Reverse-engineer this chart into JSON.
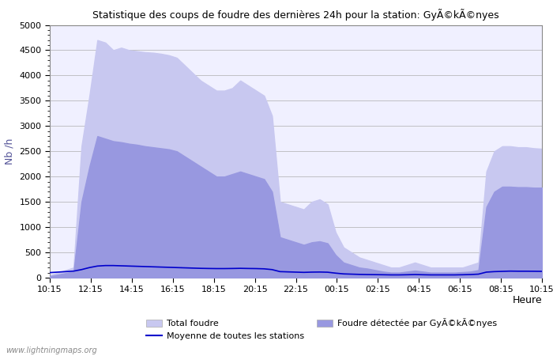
{
  "title": "Statistique des coups de foudre des dernières 24h pour la station: GyÃ©kÃ©nyes",
  "xlabel": "Heure",
  "ylabel": "Nb /h",
  "ylim": [
    0,
    5000
  ],
  "yticks": [
    0,
    500,
    1000,
    1500,
    2000,
    2500,
    3000,
    3500,
    4000,
    4500,
    5000
  ],
  "time_labels": [
    "10:15",
    "12:15",
    "14:15",
    "16:15",
    "18:15",
    "20:15",
    "22:15",
    "00:15",
    "02:15",
    "04:15",
    "06:15",
    "08:15",
    "10:15"
  ],
  "color_total": "#c8c8f0",
  "color_detected": "#9898e0",
  "color_mean": "#0000cc",
  "background": "#f0f0ff",
  "legend_total": "Total foudre",
  "legend_mean": "Moyenne de toutes les stations",
  "legend_detected": "Foudre détectée par GyÃ©kÃ©nyes",
  "watermark": "www.lightningmaps.org",
  "total_foudre": [
    50,
    100,
    150,
    200,
    2600,
    3600,
    4700,
    4650,
    4500,
    4550,
    4500,
    4480,
    4460,
    4450,
    4430,
    4400,
    4350,
    4200,
    4050,
    3900,
    3800,
    3700,
    3700,
    3750,
    3900,
    3800,
    3700,
    3600,
    3200,
    1500,
    1450,
    1400,
    1350,
    1500,
    1550,
    1450,
    900,
    600,
    500,
    400,
    350,
    300,
    250,
    200,
    200,
    250,
    300,
    250,
    200,
    200,
    200,
    200,
    200,
    250,
    300,
    2100,
    2500,
    2600,
    2600,
    2580,
    2580,
    2560,
    2550
  ],
  "detected_foudre": [
    30,
    60,
    90,
    120,
    1500,
    2200,
    2800,
    2750,
    2700,
    2680,
    2650,
    2630,
    2600,
    2580,
    2560,
    2540,
    2500,
    2400,
    2300,
    2200,
    2100,
    2000,
    2000,
    2050,
    2100,
    2050,
    2000,
    1950,
    1700,
    800,
    750,
    700,
    650,
    700,
    720,
    680,
    450,
    300,
    250,
    200,
    180,
    150,
    120,
    100,
    100,
    120,
    140,
    120,
    100,
    100,
    100,
    100,
    110,
    120,
    150,
    1400,
    1700,
    1800,
    1800,
    1790,
    1790,
    1780,
    1780
  ],
  "mean_line": [
    100,
    110,
    120,
    130,
    160,
    200,
    230,
    240,
    240,
    235,
    230,
    225,
    220,
    215,
    210,
    205,
    200,
    195,
    190,
    185,
    182,
    180,
    180,
    182,
    185,
    182,
    180,
    175,
    160,
    120,
    115,
    110,
    105,
    110,
    112,
    108,
    90,
    75,
    70,
    65,
    62,
    60,
    58,
    55,
    55,
    58,
    62,
    58,
    55,
    55,
    55,
    55,
    58,
    62,
    70,
    110,
    120,
    125,
    130,
    128,
    128,
    127,
    125
  ]
}
